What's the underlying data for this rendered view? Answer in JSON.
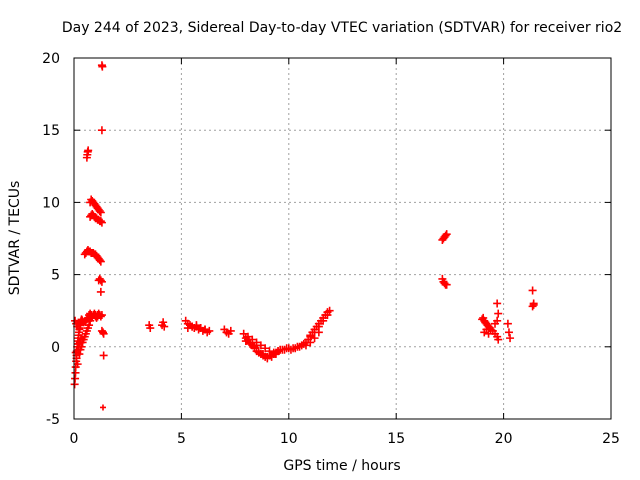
{
  "chart_data": {
    "type": "scatter",
    "title": "Day 244 of 2023, Sidereal Day-to-day VTEC variation (SDTVAR) for receiver rio2",
    "xlabel": "GPS time / hours",
    "ylabel": "SDTVAR / TECUs",
    "xlim": [
      0,
      25
    ],
    "ylim": [
      -5,
      20
    ],
    "xticks": [
      0,
      5,
      10,
      15,
      20,
      25
    ],
    "yticks": [
      -5,
      0,
      5,
      10,
      15,
      20
    ],
    "grid": true,
    "marker": "+",
    "color": "#ff0000",
    "series": [
      {
        "name": "SDTVAR",
        "x": [
          0.03,
          0.05,
          0.07,
          0.08,
          0.1,
          0.12,
          0.13,
          0.15,
          0.17,
          0.18,
          0.2,
          0.22,
          0.23,
          0.25,
          0.27,
          0.28,
          0.3,
          0.32,
          0.33,
          0.35,
          0.37,
          0.38,
          0.4,
          0.42,
          0.45,
          0.5,
          0.55,
          0.6,
          0.65,
          0.7,
          0.08,
          0.12,
          0.17,
          0.22,
          0.27,
          0.32,
          0.05,
          0.1,
          0.15,
          0.2,
          0.25,
          0.3,
          0.35,
          0.4,
          0.45,
          0.5,
          0.55,
          0.6,
          0.65,
          0.7,
          0.75,
          0.8,
          0.85,
          0.9,
          0.95,
          1.0,
          1.05,
          1.1,
          1.15,
          1.2,
          0.75,
          0.8,
          0.85,
          0.9,
          0.95,
          1.0,
          1.05,
          1.1,
          1.15,
          1.2,
          1.25,
          0.75,
          0.8,
          0.85,
          0.9,
          0.95,
          1.0,
          1.05,
          1.1,
          1.15,
          1.2,
          1.25,
          1.3,
          0.5,
          0.55,
          0.6,
          0.65,
          0.7,
          0.75,
          0.8,
          0.85,
          0.9,
          0.95,
          1.0,
          1.05,
          1.1,
          1.15,
          1.2,
          1.25,
          0.6,
          0.62,
          0.64,
          0.66,
          0.75,
          0.8,
          0.85,
          0.9,
          0.95,
          1.0,
          1.05,
          1.1,
          1.15,
          1.2,
          1.25,
          1.3,
          1.15,
          1.2,
          1.25,
          1.3,
          1.25,
          1.3,
          1.35,
          1.38,
          1.38,
          1.3,
          1.3,
          1.32,
          3.5,
          3.55,
          4.1,
          4.15,
          4.2,
          5.2,
          5.3,
          5.4,
          5.5,
          5.6,
          5.7,
          5.8,
          5.9,
          6.0,
          6.1,
          6.2,
          6.3,
          5.3,
          5.5,
          5.7,
          5.9,
          6.1,
          7.0,
          7.1,
          7.2,
          7.3,
          7.9,
          8.0,
          8.1,
          8.2,
          8.3,
          8.4,
          8.5,
          8.6,
          8.7,
          8.8,
          8.9,
          9.0,
          9.1,
          9.2,
          9.3,
          9.4,
          9.5,
          9.6,
          9.7,
          8.0,
          8.2,
          8.4,
          8.6,
          8.8,
          9.0,
          9.2,
          9.4,
          8.1,
          8.3,
          8.5,
          8.7,
          8.9,
          9.1,
          9.3,
          9.5,
          9.8,
          9.9,
          10.0,
          10.1,
          10.2,
          10.3,
          10.4,
          10.5,
          10.6,
          10.7,
          10.8,
          10.9,
          11.0,
          11.1,
          11.2,
          11.3,
          11.4,
          11.5,
          11.6,
          11.7,
          11.8,
          11.9,
          11.0,
          11.2,
          11.4,
          11.6,
          11.8,
          10.8,
          11.0,
          11.2,
          11.4,
          17.15,
          17.2,
          17.25,
          17.3,
          17.35,
          17.15,
          17.2,
          17.25,
          17.3,
          17.35,
          19.0,
          19.05,
          19.1,
          19.15,
          19.2,
          19.25,
          19.3,
          19.35,
          19.4,
          19.5,
          19.6,
          19.7,
          19.75,
          19.1,
          19.2,
          19.3,
          19.6,
          19.7,
          19.7,
          19.75,
          20.2,
          20.25,
          20.3,
          21.35,
          21.4,
          21.35,
          21.4
        ],
        "y": [
          -2.6,
          -2.2,
          -1.8,
          -1.4,
          -1.0,
          -0.6,
          -0.3,
          0.0,
          0.2,
          0.4,
          0.6,
          0.8,
          1.0,
          1.2,
          1.3,
          1.5,
          1.6,
          1.7,
          1.8,
          1.9,
          1.85,
          1.8,
          1.75,
          1.7,
          1.7,
          1.75,
          1.8,
          1.9,
          2.0,
          2.2,
          -0.4,
          -0.8,
          -1.2,
          -0.2,
          0.3,
          0.6,
          1.8,
          1.6,
          1.4,
          0.2,
          -0.5,
          -0.2,
          0.0,
          0.3,
          0.5,
          0.7,
          0.9,
          1.1,
          1.3,
          1.5,
          1.8,
          2.0,
          2.1,
          2.2,
          2.2,
          2.1,
          2.0,
          2.1,
          2.2,
          2.2,
          10.0,
          10.2,
          10.1,
          10.0,
          9.9,
          9.8,
          9.7,
          9.6,
          9.5,
          9.4,
          9.3,
          9.0,
          9.1,
          9.2,
          9.1,
          9.0,
          8.9,
          8.9,
          8.8,
          8.8,
          8.7,
          8.7,
          8.6,
          6.4,
          6.5,
          6.6,
          6.7,
          6.6,
          6.6,
          6.5,
          6.5,
          6.5,
          6.4,
          6.4,
          6.3,
          6.2,
          6.1,
          6.0,
          5.9,
          13.1,
          13.3,
          13.5,
          13.6,
          2.3,
          2.2,
          2.1,
          2.2,
          2.3,
          2.2,
          2.1,
          2.2,
          2.3,
          2.2,
          2.1,
          2.2,
          4.6,
          4.7,
          4.6,
          4.5,
          3.8,
          1.1,
          1.0,
          0.9,
          -0.6,
          15.0,
          19.5,
          19.4,
          1.5,
          1.3,
          1.5,
          1.7,
          1.4,
          1.8,
          1.6,
          1.5,
          1.4,
          1.3,
          1.4,
          1.2,
          1.3,
          1.1,
          1.2,
          1.0,
          1.1,
          1.3,
          1.4,
          1.5,
          1.3,
          1.2,
          1.2,
          1.0,
          0.9,
          1.1,
          0.9,
          0.6,
          0.5,
          0.3,
          0.1,
          -0.1,
          -0.3,
          -0.4,
          -0.5,
          -0.6,
          -0.7,
          -0.7,
          -0.6,
          -0.6,
          -0.5,
          -0.4,
          -0.3,
          -0.2,
          -0.2,
          0.4,
          0.2,
          0.0,
          -0.3,
          -0.5,
          -0.8,
          -0.7,
          -0.5,
          0.7,
          0.5,
          0.3,
          0.1,
          -0.1,
          -0.3,
          -0.4,
          -0.3,
          -0.2,
          -0.1,
          -0.1,
          -0.2,
          -0.1,
          -0.1,
          0.0,
          0.0,
          0.1,
          0.2,
          0.3,
          0.5,
          0.8,
          1.0,
          1.2,
          1.4,
          1.6,
          1.8,
          2.0,
          2.2,
          2.4,
          2.5,
          0.7,
          1.0,
          1.4,
          1.8,
          2.2,
          0.1,
          0.3,
          0.6,
          1.0,
          7.4,
          7.5,
          7.6,
          7.7,
          7.8,
          4.7,
          4.5,
          4.4,
          4.3,
          4.3,
          1.9,
          2.0,
          1.8,
          1.7,
          1.6,
          1.5,
          1.4,
          1.3,
          1.2,
          1.1,
          0.9,
          0.7,
          0.5,
          1.0,
          1.2,
          0.9,
          1.6,
          1.8,
          3.0,
          2.3,
          1.6,
          1.0,
          0.6,
          3.9,
          2.9,
          2.8,
          3.0
        ]
      }
    ],
    "outlier_point": {
      "x": 1.35,
      "y": -4.2
    }
  }
}
